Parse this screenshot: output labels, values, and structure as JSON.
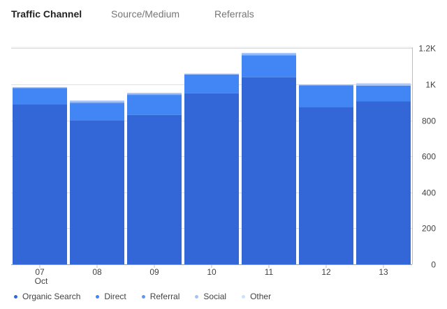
{
  "tabs": [
    {
      "label": "Traffic Channel",
      "active": true
    },
    {
      "label": "Source/Medium",
      "active": false
    },
    {
      "label": "Referrals",
      "active": false
    }
  ],
  "chart_data": {
    "type": "bar",
    "stacked": true,
    "categories": [
      "07",
      "08",
      "09",
      "10",
      "11",
      "12",
      "13"
    ],
    "month_label": "Oct",
    "series": [
      {
        "name": "Organic Search",
        "color": "#3366d6",
        "values": [
          890,
          800,
          830,
          950,
          1040,
          875,
          905
        ]
      },
      {
        "name": "Direct",
        "color": "#4285f4",
        "values": [
          90,
          95,
          110,
          105,
          120,
          120,
          88
        ]
      },
      {
        "name": "Referral",
        "color": "#5e97f6",
        "values": [
          0,
          5,
          5,
          0,
          5,
          0,
          0
        ]
      },
      {
        "name": "Social",
        "color": "#a1c2fa",
        "values": [
          5,
          10,
          8,
          5,
          10,
          5,
          10
        ]
      },
      {
        "name": "Other",
        "color": "#cfe0fc",
        "values": [
          0,
          0,
          0,
          0,
          0,
          0,
          5
        ]
      }
    ],
    "y_ticks": [
      {
        "value": 0,
        "label": "0"
      },
      {
        "value": 200,
        "label": "200"
      },
      {
        "value": 400,
        "label": "400"
      },
      {
        "value": 600,
        "label": "600"
      },
      {
        "value": 800,
        "label": "800"
      },
      {
        "value": 1000,
        "label": "1K"
      },
      {
        "value": 1200,
        "label": "1.2K"
      }
    ],
    "ylim": [
      0,
      1200
    ],
    "legend_position": "bottom-left",
    "grid": true
  }
}
